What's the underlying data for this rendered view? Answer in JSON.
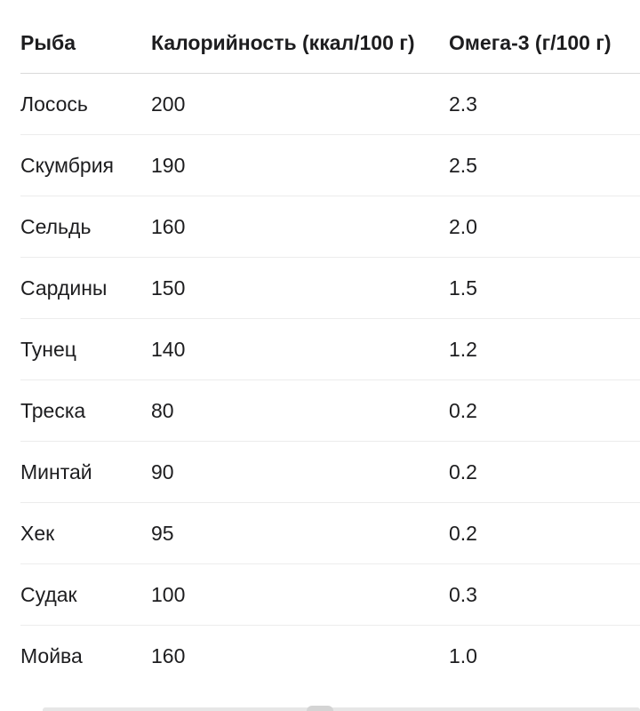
{
  "table": {
    "headers": {
      "fish": "Рыба",
      "calories": "Калорийность (ккал/100 г)",
      "omega3": "Омега-3 (г/100 г)"
    },
    "rows": [
      {
        "fish": "Лосось",
        "calories": "200",
        "omega3": "2.3"
      },
      {
        "fish": "Скумбрия",
        "calories": "190",
        "omega3": "2.5"
      },
      {
        "fish": "Сельдь",
        "calories": "160",
        "omega3": "2.0"
      },
      {
        "fish": "Сардины",
        "calories": "150",
        "omega3": "1.5"
      },
      {
        "fish": "Тунец",
        "calories": "140",
        "omega3": "1.2"
      },
      {
        "fish": "Треска",
        "calories": "80",
        "omega3": "0.2"
      },
      {
        "fish": "Минтай",
        "calories": "90",
        "omega3": "0.2"
      },
      {
        "fish": "Хек",
        "calories": "95",
        "omega3": "0.2"
      },
      {
        "fish": "Судак",
        "calories": "100",
        "omega3": "0.3"
      },
      {
        "fish": "Мойва",
        "calories": "160",
        "omega3": "1.0"
      }
    ]
  }
}
